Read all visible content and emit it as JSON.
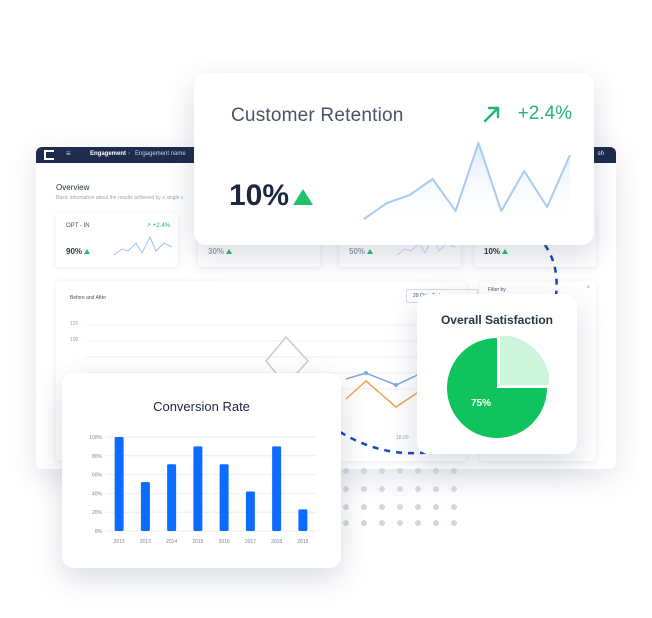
{
  "dashboard": {
    "breadcrumb_1": "Engagement",
    "breadcrumb_2": "Engagement name",
    "separator": "›",
    "menu_glyph": "≡",
    "right_label": "sh",
    "overview_title": "Overview",
    "overview_subtitle": "Basic information about the results achieved by a single c",
    "tiles": [
      {
        "label": "OPT - IN",
        "delta": "↗ +2.4%",
        "value": "90%"
      },
      {
        "label": "",
        "delta": "",
        "value": "30%"
      },
      {
        "label": "",
        "delta": "",
        "value": "50%"
      },
      {
        "label": "",
        "delta": "",
        "value": "10%"
      }
    ],
    "before_after_label": "Before and After",
    "date_range": "29 Oct - Tod",
    "filter_label": "Filter by",
    "filter_close": "×",
    "y_ticks": [
      "125",
      "100"
    ],
    "x_tick": "18.00"
  },
  "customer_retention": {
    "title": "Customer Retention",
    "delta": "+2.4%",
    "value": "10%",
    "arrow_icon": "arrow-up-right-icon",
    "trend_icon": "triangle-up-icon",
    "sparkline": [
      0.05,
      0.25,
      0.35,
      0.55,
      0.15,
      1.0,
      0.15,
      0.65,
      0.2,
      0.85
    ]
  },
  "overall_satisfaction": {
    "title": "Overall Satisfaction",
    "value_label": "75%",
    "value": 75,
    "colors": {
      "main": "#0fc35f",
      "rest": "#cdf4dc"
    }
  },
  "conversion_rate": {
    "title": "Conversion Rate",
    "chart_data": {
      "type": "bar",
      "title": "Conversion Rate",
      "categories": [
        "2012",
        "2013",
        "2014",
        "2015",
        "2016",
        "2017",
        "2018",
        "2019"
      ],
      "values": [
        100,
        52,
        71,
        90,
        71,
        42,
        90,
        23
      ],
      "y_tick_labels": [
        "100%",
        "80%",
        "60%",
        "40%",
        "20%",
        "0%"
      ],
      "ylim": [
        0,
        100
      ],
      "color": "#0b6cff",
      "grid": true
    }
  },
  "colors": {
    "accent_green": "#22b573",
    "navy": "#1f2b4d",
    "bar_blue": "#0b6cff",
    "dash_line": "#1748b8",
    "blob": "#d9f5e6"
  }
}
